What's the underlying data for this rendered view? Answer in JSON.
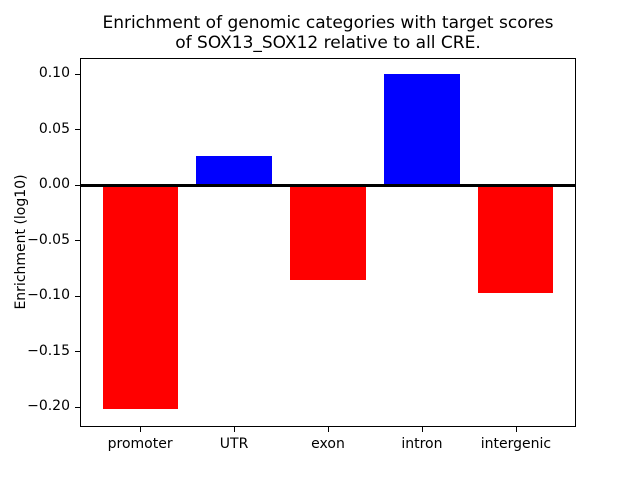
{
  "figure": {
    "title": "Enrichment of genomic categories with target scores\nof SOX13_SOX12 relative to all CRE.",
    "ylabel": "Enrichment (log10)",
    "background_color": "#ffffff",
    "spine_color": "#000000"
  },
  "chart_data": {
    "type": "bar",
    "title": "Enrichment of genomic categories with target scores of SOX13_SOX12 relative to all CRE.",
    "xlabel": "",
    "ylabel": "Enrichment (log10)",
    "categories": [
      "promoter",
      "UTR",
      "exon",
      "intron",
      "intergenic"
    ],
    "values": [
      -0.202,
      0.026,
      -0.085,
      0.1,
      -0.097
    ],
    "bar_colors": [
      "#ff0000",
      "#0000ff",
      "#ff0000",
      "#0000ff",
      "#ff0000"
    ],
    "positive_color": "#0000ff",
    "negative_color": "#ff0000",
    "yticks": [
      {
        "value": 0.1,
        "label": "0.10"
      },
      {
        "value": 0.05,
        "label": "0.05"
      },
      {
        "value": 0.0,
        "label": "0.00"
      },
      {
        "value": -0.05,
        "label": "−0.05"
      },
      {
        "value": -0.1,
        "label": "−0.10"
      },
      {
        "value": -0.15,
        "label": "−0.15"
      },
      {
        "value": -0.2,
        "label": "−0.20"
      }
    ],
    "ylim": [
      -0.218,
      0.115
    ],
    "xlim": [
      -0.64,
      4.64
    ],
    "bar_width": 0.8,
    "grid": false,
    "legend": null,
    "zero_line": true
  }
}
